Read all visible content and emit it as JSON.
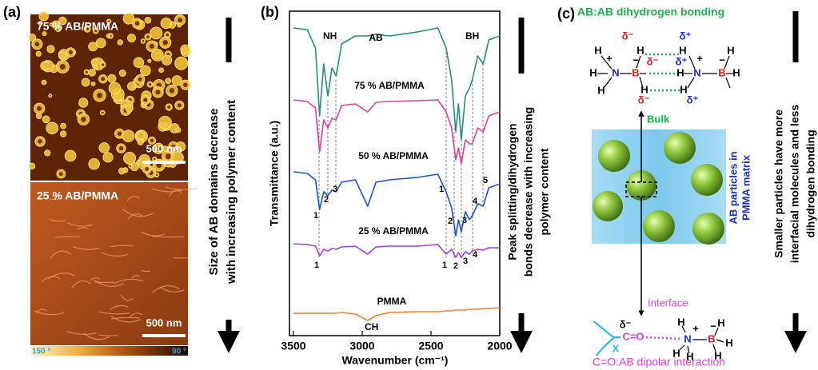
{
  "panel_a": {
    "label": "(a)",
    "top_image_label": "75 % AB/PMMA",
    "top_scale_bar": "500 nm",
    "bottom_image_label": "25 % AB/PMMA",
    "bottom_scale_bar": "500 nm",
    "colorbar_min": "150 °",
    "colorbar_max": "90 °",
    "arrow_text": [
      "Size of AB domains decrease",
      "with increasing polymer content"
    ]
  },
  "chart_data": {
    "type": "line",
    "panel_label": "(b)",
    "x_label": "Wavenumber (cm⁻¹)",
    "y_label": "Transmittance (a.u.)",
    "x": [
      3500,
      3400,
      3340,
      3310,
      3280,
      3250,
      3220,
      3190,
      3150,
      3050,
      2960,
      2900,
      2800,
      2600,
      2450,
      2390,
      2350,
      2320,
      2300,
      2280,
      2250,
      2220,
      2200,
      2160,
      2120,
      2080,
      2000
    ],
    "xlim": [
      3500,
      2000
    ],
    "xticks": [
      3500,
      3000,
      2500,
      2000
    ],
    "ylim": [
      0,
      395
    ],
    "series": [
      {
        "name": "AB",
        "color": "#2a8a7e",
        "values": [
          380,
          378,
          355,
          270,
          335,
          295,
          330,
          320,
          360,
          370,
          370,
          372,
          370,
          375,
          380,
          355,
          315,
          250,
          285,
          240,
          295,
          305,
          315,
          345,
          335,
          365,
          370
        ]
      },
      {
        "name": "75 % AB/PMMA",
        "color": "#e0409a",
        "values": [
          290,
          288,
          280,
          225,
          265,
          255,
          267,
          265,
          283,
          285,
          275,
          287,
          288,
          289,
          290,
          275,
          255,
          215,
          230,
          210,
          240,
          235,
          235,
          255,
          250,
          270,
          275
        ]
      },
      {
        "name": "50 % AB/PMMA",
        "color": "#2050d8",
        "values": [
          200,
          198,
          190,
          153,
          175,
          170,
          177,
          175,
          187,
          190,
          157,
          187,
          190,
          193,
          197,
          175,
          155,
          120,
          140,
          125,
          150,
          140,
          145,
          160,
          157,
          180,
          185
        ]
      },
      {
        "name": "25 % AB/PMMA",
        "color": "#a040e0",
        "values": [
          110,
          109,
          107,
          95,
          103,
          101,
          104,
          103,
          106,
          107,
          97,
          106,
          107,
          107,
          109,
          97,
          103,
          93,
          99,
          93,
          100,
          97,
          101,
          103,
          102,
          105,
          105
        ]
      },
      {
        "name": "PMMA",
        "color": "#f08030",
        "values": [
          23,
          23,
          23,
          23,
          23,
          23,
          23,
          23,
          24,
          22,
          14,
          20,
          24,
          25,
          25,
          26,
          26,
          27,
          27,
          27,
          27,
          28,
          28,
          28,
          29,
          29,
          30
        ]
      }
    ],
    "annotations": [
      "NH",
      "BH",
      "CH"
    ],
    "peak_labels": [
      "1",
      "2",
      "3",
      "1",
      "2",
      "3",
      "4",
      "5",
      "1",
      "1",
      "2",
      "3",
      "4"
    ],
    "arrow_text": [
      "Peak splitting/dihydrogen",
      "bonds decrease with increasing",
      "polymer content"
    ]
  },
  "panel_c": {
    "label": "(c)",
    "top_title": "AB:AB dihydrogen bonding",
    "bulk_label": "Bulk",
    "particles_label": [
      "AB particles in",
      "PMMA matrix"
    ],
    "interface_label": "Interface",
    "bottom_title": "C=O:AB dipolar interaction",
    "atoms": [
      "δ⁻",
      "δ⁺",
      "H",
      "H",
      "H",
      "N",
      "+",
      "B",
      "−",
      "H",
      "H",
      "δ⁻",
      "H",
      "H",
      "H",
      "N",
      "+",
      "B",
      "−",
      "H",
      "H",
      "δ⁻",
      "δ⁺",
      "δ⁺",
      "δ⁻",
      "C=O",
      "X",
      "H",
      "N",
      "+",
      "H",
      "H",
      "B",
      "−",
      "H",
      "H",
      "H"
    ],
    "arrow_text": [
      "Smaller particles have more",
      "interfacial molecules and less",
      "dihydrogen bonding"
    ]
  }
}
